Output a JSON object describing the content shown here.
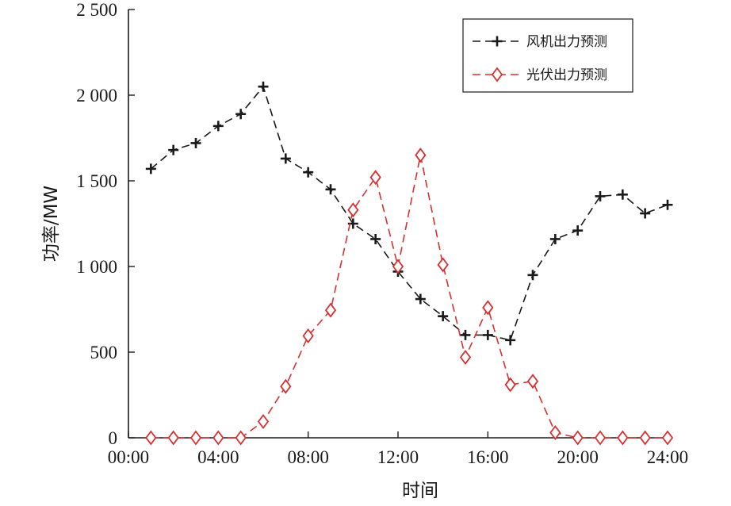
{
  "chart_data": {
    "type": "line",
    "xlabel": "时间",
    "ylabel": "功率/MW",
    "x": [
      1,
      2,
      3,
      4,
      5,
      6,
      7,
      8,
      9,
      10,
      11,
      12,
      13,
      14,
      15,
      16,
      17,
      18,
      19,
      20,
      21,
      22,
      23,
      24
    ],
    "x_unit": "hour",
    "xlim": [
      0,
      24
    ],
    "ylim": [
      0,
      2500
    ],
    "xticks": [
      0,
      4,
      8,
      12,
      16,
      20,
      24
    ],
    "xtick_labels": [
      "00:00",
      "04:00",
      "08:00",
      "12:00",
      "16:00",
      "20:00",
      "24:00"
    ],
    "yticks": [
      0,
      500,
      1000,
      1500,
      2000,
      2500
    ],
    "ytick_labels": [
      "0",
      "500",
      "1 000",
      "1 500",
      "2 000",
      "2 500"
    ],
    "grid": false,
    "legend_position": "top-right",
    "series": [
      {
        "name": "风机出力预测",
        "color": "#1a1a1a",
        "marker": "plus",
        "line_style": "dashed",
        "values": [
          1570,
          1680,
          1720,
          1820,
          1890,
          2050,
          1630,
          1550,
          1450,
          1250,
          1160,
          970,
          810,
          710,
          600,
          600,
          570,
          950,
          1160,
          1210,
          1410,
          1420,
          1310,
          1360
        ]
      },
      {
        "name": "光伏出力预测",
        "color": "#d9302f",
        "marker": "diamond",
        "line_style": "dashed",
        "values": [
          0,
          0,
          0,
          0,
          0,
          95,
          300,
          595,
          745,
          1330,
          1520,
          1000,
          1650,
          1010,
          470,
          760,
          310,
          330,
          30,
          0,
          0,
          0,
          0,
          0
        ]
      }
    ]
  }
}
